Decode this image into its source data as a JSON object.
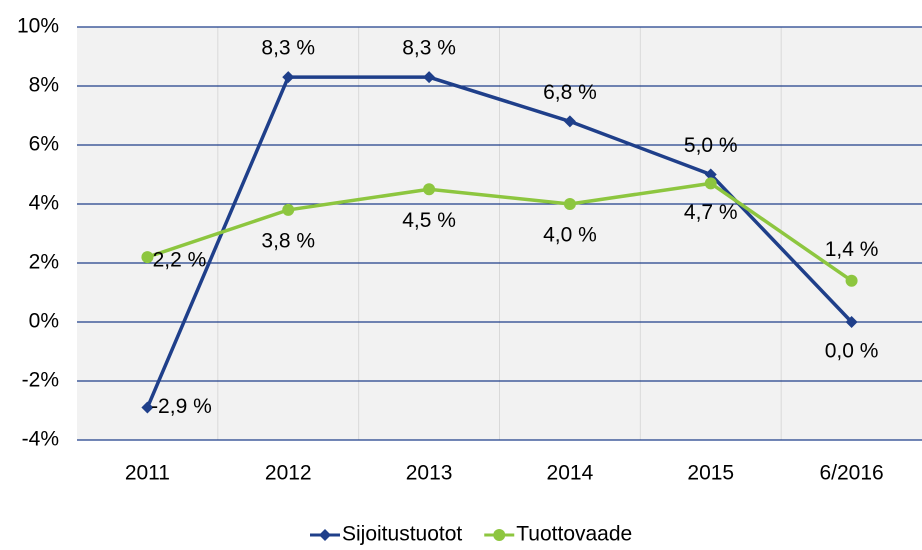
{
  "chart_data": {
    "type": "line",
    "categories": [
      "2011",
      "2012",
      "2013",
      "2014",
      "2015",
      "6/2016"
    ],
    "series": [
      {
        "name": "Sijoitustuotot",
        "color": "#1f3f8a",
        "marker": "diamond",
        "values": [
          -2.9,
          8.3,
          8.3,
          6.8,
          5.0,
          0.0
        ],
        "value_labels": [
          "-2,9 %",
          "8,3 %",
          "8,3 %",
          "6,8 %",
          "5,0 %",
          "0,0 %"
        ]
      },
      {
        "name": "Tuottovaade",
        "color": "#8dc63f",
        "marker": "circle",
        "values": [
          2.2,
          3.8,
          4.5,
          4.0,
          4.7,
          1.4
        ],
        "value_labels": [
          "2,2 %",
          "3,8 %",
          "4,5 %",
          "4,0 %",
          "4,7 %",
          "1,4 %"
        ]
      }
    ],
    "ylim": [
      -4,
      10
    ],
    "yticks": [
      {
        "value": -4,
        "label": "-4%"
      },
      {
        "value": -2,
        "label": "-2%"
      },
      {
        "value": 0,
        "label": "0%"
      },
      {
        "value": 2,
        "label": "2%"
      },
      {
        "value": 4,
        "label": "4%"
      },
      {
        "value": 6,
        "label": "6%"
      },
      {
        "value": 8,
        "label": "8%"
      },
      {
        "value": 10,
        "label": "10%"
      }
    ],
    "grid": true,
    "legend": "bottom"
  }
}
